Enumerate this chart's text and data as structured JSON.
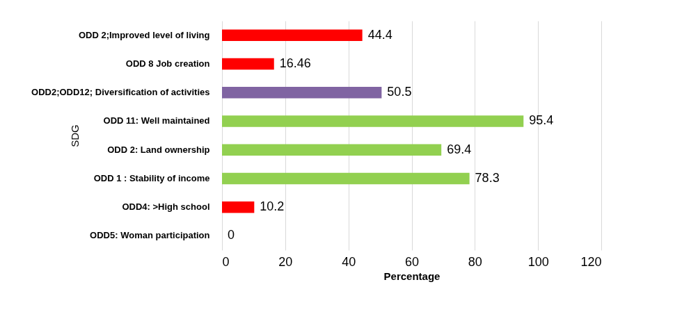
{
  "chart_data": {
    "type": "bar",
    "orientation": "horizontal",
    "xlabel": "Percentage",
    "ylabel": "SDG",
    "categories": [
      "ODD 2;Improved level of living",
      "ODD 8 Job creation",
      "ODD2;ODD12;  Diversification of activities",
      "ODD 11: Well maintained ",
      "ODD 2: Land ownership",
      "ODD 1 : Stability of income",
      "ODD4: >High school",
      "ODD5: Woman participation"
    ],
    "values": [
      44.4,
      16.46,
      50.5,
      95.4,
      69.4,
      78.3,
      10.2,
      0
    ],
    "colors": [
      "#ff0000",
      "#ff0000",
      "#8064a2",
      "#92d050",
      "#92d050",
      "#92d050",
      "#ff0000",
      "#ff0000"
    ],
    "xlim": [
      0,
      120
    ],
    "xticks": [
      0,
      20,
      40,
      60,
      80,
      100,
      120
    ],
    "grid": "x",
    "legend": false,
    "data_labels": true
  }
}
